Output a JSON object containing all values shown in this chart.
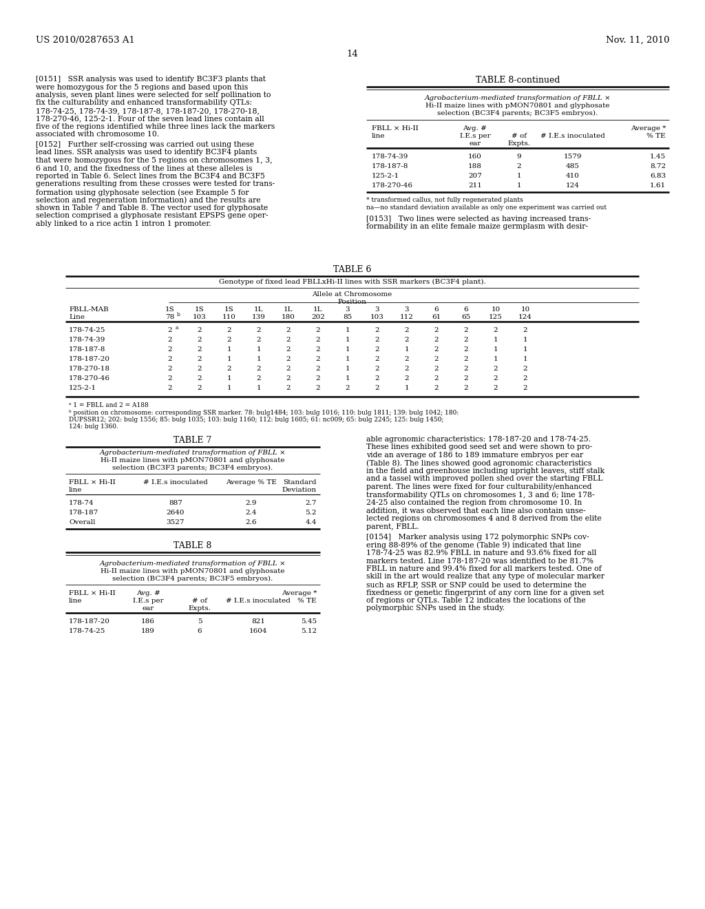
{
  "header_left": "US 2010/0287653 A1",
  "header_right": "Nov. 11, 2010",
  "page_num": "14",
  "bg_color": "#ffffff",
  "text_color": "#000000",
  "para151": "[0151]   SSR analysis was used to identify BC3F3 plants that\nwere homozygous for the 5 regions and based upon this\nanalysis, seven plant lines were selected for self pollination to\nfix the culturability and enhanced transformability QTLs:\n178-74-25, 178-74-39, 178-187-8, 178-187-20, 178-270-18,\n178-270-46, 125-2-1. Four of the seven lead lines contain all\nfive of the regions identified while three lines lack the markers\nassociated with chromosome 10.",
  "para152": "[0152]   Further self-crossing was carried out using these\nlead lines. SSR analysis was used to identify BC3F4 plants\nthat were homozygous for the 5 regions on chromosomes 1, 3,\n6 and 10, and the fixedness of the lines at these alleles is\nreported in Table 6. Select lines from the BC3F4 and BC3F5\ngenerations resulting from these crosses were tested for trans-\nformation using glyphosate selection (see Example 5 for\nselection and regeneration information) and the results are\nshown in Table 7 and Table 8. The vector used for glyphosate\nselection comprised a glyphosate resistant EPSPS gene oper-\nably linked to a rice actin 1 intron 1 promoter.",
  "para153a": "[0153]   Two lines were selected as having increased trans-\nformability in an elite female maize germplasm with desir-",
  "para153b": "able agronomic characteristics: 178-187-20 and 178-74-25.\nThese lines exhibited good seed set and were shown to pro-\nvide an average of 186 to 189 immature embryos per ear\n(Table 8). The lines showed good agronomic characteristics\nin the field and greenhouse including upright leaves, stiff stalk\nand a tassel with improved pollen shed over the starting FBLL\nparent. The lines were fixed for four culturability/enhanced\ntransformability QTLs on chromosomes 1, 3 and 6; line 178-\n24-25 also contained the region from chromosome 10. In\naddition, it was observed that each line also contain unse-\nlected regions on chromosomes 4 and 8 derived from the elite\nparent, FBLL.",
  "para154": "[0154]   Marker analysis using 172 polymorphic SNPs cov-\nering 88-89% of the genome (Table 9) indicated that line\n178-74-25 was 82.9% FBLL in nature and 93.6% fixed for all\nmarkers tested. Line 178-187-20 was identified to be 81.7%\nFBLL in nature and 99.4% fixed for all markers tested. One of\nskill in the art would realize that any type of molecular marker\nsuch as RFLP, SSR or SNP could be used to determine the\nfixedness or genetic fingerprint of any corn line for a given set\nof regions or QTLs. Table 12 indicates the locations of the\npolymorphic SNPs used in the study.",
  "t8c_data": [
    [
      "178-74-39",
      "160",
      "9",
      "1579",
      "1.45"
    ],
    [
      "178-187-8",
      "188",
      "2",
      "485",
      "8.72"
    ],
    [
      "125-2-1",
      "207",
      "1",
      "410",
      "6.83"
    ],
    [
      "178-270-46",
      "211",
      "1",
      "124",
      "1.61"
    ]
  ],
  "t6_data": [
    [
      "178-74-25",
      "2a",
      "2",
      "2",
      "2",
      "2",
      "2",
      "1",
      "2",
      "2",
      "2",
      "2",
      "2",
      "2"
    ],
    [
      "178-74-39",
      "2",
      "2",
      "2",
      "2",
      "2",
      "2",
      "1",
      "2",
      "2",
      "2",
      "2",
      "1",
      "1"
    ],
    [
      "178-187-8",
      "2",
      "2",
      "1",
      "1",
      "2",
      "2",
      "1",
      "2",
      "1",
      "2",
      "2",
      "1",
      "1"
    ],
    [
      "178-187-20",
      "2",
      "2",
      "1",
      "1",
      "2",
      "2",
      "1",
      "2",
      "2",
      "2",
      "2",
      "1",
      "1"
    ],
    [
      "178-270-18",
      "2",
      "2",
      "2",
      "2",
      "2",
      "2",
      "1",
      "2",
      "2",
      "2",
      "2",
      "2",
      "2"
    ],
    [
      "178-270-46",
      "2",
      "2",
      "1",
      "2",
      "2",
      "2",
      "1",
      "2",
      "2",
      "2",
      "2",
      "2",
      "2"
    ],
    [
      "125-2-1",
      "2",
      "2",
      "1",
      "1",
      "2",
      "2",
      "2",
      "2",
      "1",
      "2",
      "2",
      "2",
      "2"
    ]
  ],
  "t7_data": [
    [
      "178-74",
      "887",
      "2.9",
      "2.7"
    ],
    [
      "178-187",
      "2640",
      "2.4",
      "5.2"
    ],
    [
      "Overall",
      "3527",
      "2.6",
      "4.4"
    ]
  ],
  "t8_data": [
    [
      "178-187-20",
      "186",
      "5",
      "821",
      "5.45"
    ],
    [
      "178-74-25",
      "189",
      "6",
      "1604",
      "5.12"
    ]
  ]
}
